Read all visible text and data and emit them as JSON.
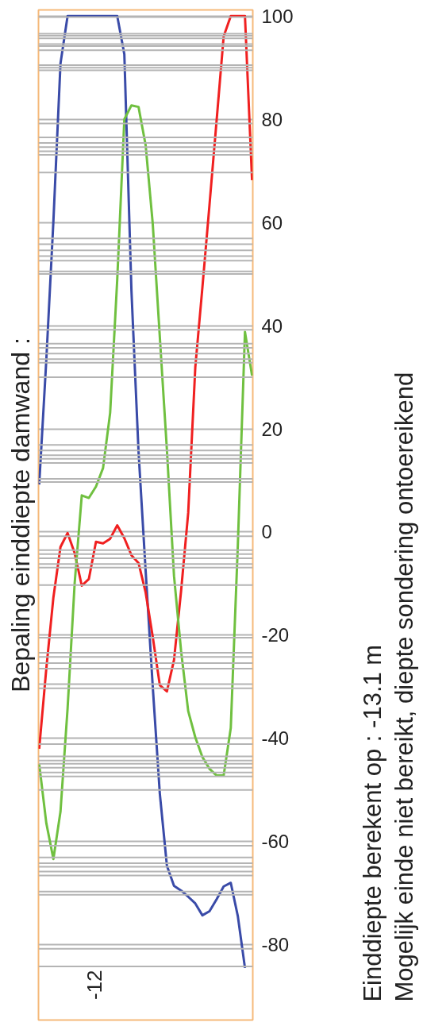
{
  "chart_data": {
    "type": "line",
    "title": "Bepaling einddiepte damwand :",
    "annotations": [
      "Einddiepte berekent op : -13.1 m",
      "Mogelijk einde niet bereikt, diepte sondering ontoereikend",
      "-12"
    ],
    "categories": [
      null,
      null,
      null,
      null,
      null,
      null,
      null,
      null,
      null,
      null,
      null,
      null,
      null,
      null,
      null,
      null,
      null,
      null,
      null,
      null,
      null,
      null,
      null,
      null,
      null,
      null,
      null,
      null,
      null,
      null,
      null
    ],
    "ylim": [
      -94.6,
      101.2
    ],
    "yticks": [
      -80,
      -60,
      -40,
      -20,
      0,
      20,
      40,
      60,
      80,
      100
    ],
    "grid": true,
    "series": [
      {
        "color": "#3a4ba8",
        "values": [
          9.2,
          33.3,
          60.2,
          90.8,
          100,
          100,
          100,
          100,
          100,
          100,
          100,
          100,
          92.6,
          46.8,
          15.6,
          -7.5,
          -29.9,
          -50.7,
          -64.7,
          -68.6,
          -69.5,
          -70.7,
          -72.0,
          -74.3,
          -73.5,
          -71.2,
          -68.7,
          -68.0,
          -74.5,
          -84.5,
          null
        ]
      },
      {
        "color": "#f02020",
        "values": [
          -42,
          -26.5,
          -12.7,
          -2.9,
          -0.2,
          -4.1,
          -10.4,
          -9.1,
          -1.9,
          -2.2,
          -1.3,
          1.3,
          -1.2,
          -4.5,
          -6.0,
          -11.7,
          -20.3,
          -29.7,
          -30.9,
          -24.8,
          -11.4,
          3.7,
          31.9,
          47.4,
          63.4,
          79.7,
          96.1,
          100,
          100,
          100,
          68.2
        ]
      },
      {
        "color": "#70c040",
        "values": [
          -45,
          -56.4,
          -63.4,
          -54.2,
          -34.2,
          -9.9,
          7.1,
          6.6,
          8.8,
          12.4,
          23.1,
          49.0,
          80,
          82.7,
          82.4,
          75.0,
          59.8,
          37.8,
          15.9,
          -8.5,
          -23.1,
          -34.7,
          -39.8,
          -43.6,
          -45.9,
          -47.2,
          -47.2,
          -38.0,
          -2.4,
          38.8,
          30.3
        ]
      }
    ],
    "ref_lines": [
      {
        "axis": "y",
        "value": 99.8,
        "color": "#b4b4b4"
      },
      {
        "axis": "y",
        "value": 96.6,
        "color": "#b4b4b4"
      },
      {
        "axis": "y",
        "value": 96.2,
        "color": "#b4b4b4"
      },
      {
        "axis": "y",
        "value": 95.7,
        "color": "#b4b4b4"
      },
      {
        "axis": "y",
        "value": 94.6,
        "color": "#b4b4b4"
      },
      {
        "axis": "y",
        "value": 94.2,
        "color": "#b4b4b4"
      },
      {
        "axis": "y",
        "value": 93.4,
        "color": "#b4b4b4"
      },
      {
        "axis": "y",
        "value": 90.5,
        "color": "#b4b4b4"
      },
      {
        "axis": "y",
        "value": 90,
        "color": "#b4b4b4"
      },
      {
        "axis": "y",
        "value": 89.5,
        "color": "#b4b4b4"
      },
      {
        "axis": "y",
        "value": 79.2,
        "color": "#b4b4b4"
      },
      {
        "axis": "y",
        "value": 76.5,
        "color": "#b4b4b4"
      },
      {
        "axis": "y",
        "value": 75.4,
        "color": "#b4b4b4"
      },
      {
        "axis": "y",
        "value": 74.6,
        "color": "#b4b4b4"
      },
      {
        "axis": "y",
        "value": 73.8,
        "color": "#b4b4b4"
      },
      {
        "axis": "y",
        "value": 73.1,
        "color": "#b4b4b4"
      },
      {
        "axis": "y",
        "value": 69.7,
        "color": "#b4b4b4"
      },
      {
        "axis": "y",
        "value": 56.9,
        "color": "#b4b4b4"
      },
      {
        "axis": "y",
        "value": 55.8,
        "color": "#b4b4b4"
      },
      {
        "axis": "y",
        "value": 54.6,
        "color": "#b4b4b4"
      },
      {
        "axis": "y",
        "value": 53.5,
        "color": "#b4b4b4"
      },
      {
        "axis": "y",
        "value": 52.6,
        "color": "#b4b4b4"
      },
      {
        "axis": "y",
        "value": 50.5,
        "color": "#b4b4b4"
      },
      {
        "axis": "y",
        "value": 50,
        "color": "#b4b4b4"
      },
      {
        "axis": "y",
        "value": 39.2,
        "color": "#b4b4b4"
      },
      {
        "axis": "y",
        "value": 36.5,
        "color": "#b4b4b4"
      },
      {
        "axis": "y",
        "value": 35.7,
        "color": "#b4b4b4"
      },
      {
        "axis": "y",
        "value": 34.6,
        "color": "#b4b4b4"
      },
      {
        "axis": "y",
        "value": 33.5,
        "color": "#b4b4b4"
      },
      {
        "axis": "y",
        "value": 32.8,
        "color": "#b4b4b4"
      },
      {
        "axis": "y",
        "value": 30,
        "color": "#b4b4b4"
      },
      {
        "axis": "y",
        "value": 16.9,
        "color": "#b4b4b4"
      },
      {
        "axis": "y",
        "value": 15.8,
        "color": "#b4b4b4"
      },
      {
        "axis": "y",
        "value": 14.9,
        "color": "#b4b4b4"
      },
      {
        "axis": "y",
        "value": 14.2,
        "color": "#b4b4b4"
      },
      {
        "axis": "y",
        "value": 13.4,
        "color": "#b4b4b4"
      },
      {
        "axis": "y",
        "value": 10.3,
        "color": "#b4b4b4"
      },
      {
        "axis": "y",
        "value": 9.7,
        "color": "#b4b4b4"
      },
      {
        "axis": "y",
        "value": -0.8,
        "color": "#b4b4b4"
      },
      {
        "axis": "y",
        "value": -3.5,
        "color": "#b4b4b4"
      },
      {
        "axis": "y",
        "value": -4.3,
        "color": "#b4b4b4"
      },
      {
        "axis": "y",
        "value": -5.1,
        "color": "#b4b4b4"
      },
      {
        "axis": "y",
        "value": -6.2,
        "color": "#b4b4b4"
      },
      {
        "axis": "y",
        "value": -6.9,
        "color": "#b4b4b4"
      },
      {
        "axis": "y",
        "value": -10.3,
        "color": "#b4b4b4"
      },
      {
        "axis": "y",
        "value": -20.5,
        "color": "#b4b4b4"
      },
      {
        "axis": "y",
        "value": -23.4,
        "color": "#b4b4b4"
      },
      {
        "axis": "y",
        "value": -24.2,
        "color": "#b4b4b4"
      },
      {
        "axis": "y",
        "value": -25.4,
        "color": "#b4b4b4"
      },
      {
        "axis": "y",
        "value": -26.5,
        "color": "#b4b4b4"
      },
      {
        "axis": "y",
        "value": -29.5,
        "color": "#b4b4b4"
      },
      {
        "axis": "y",
        "value": -30.3,
        "color": "#b4b4b4"
      },
      {
        "axis": "y",
        "value": -41.1,
        "color": "#b4b4b4"
      },
      {
        "axis": "y",
        "value": -43.5,
        "color": "#b4b4b4"
      },
      {
        "axis": "y",
        "value": -44.3,
        "color": "#b4b4b4"
      },
      {
        "axis": "y",
        "value": -44.9,
        "color": "#b4b4b4"
      },
      {
        "axis": "y",
        "value": -45.7,
        "color": "#b4b4b4"
      },
      {
        "axis": "y",
        "value": -46.6,
        "color": "#b4b4b4"
      },
      {
        "axis": "y",
        "value": -47.4,
        "color": "#b4b4b4"
      },
      {
        "axis": "y",
        "value": -50,
        "color": "#b4b4b4"
      },
      {
        "axis": "y",
        "value": -60.8,
        "color": "#b4b4b4"
      },
      {
        "axis": "y",
        "value": -63.1,
        "color": "#b4b4b4"
      },
      {
        "axis": "y",
        "value": -64.2,
        "color": "#b4b4b4"
      },
      {
        "axis": "y",
        "value": -64.9,
        "color": "#b4b4b4"
      },
      {
        "axis": "y",
        "value": -65.8,
        "color": "#b4b4b4"
      },
      {
        "axis": "y",
        "value": -66.6,
        "color": "#b4b4b4"
      },
      {
        "axis": "y",
        "value": -69.7,
        "color": "#b4b4b4"
      },
      {
        "axis": "y",
        "value": -70.3,
        "color": "#b4b4b4"
      },
      {
        "axis": "y",
        "value": -80.8,
        "color": "#b4b4b4"
      },
      {
        "axis": "y",
        "value": -84.2,
        "color": "#b4b4b4"
      }
    ]
  }
}
